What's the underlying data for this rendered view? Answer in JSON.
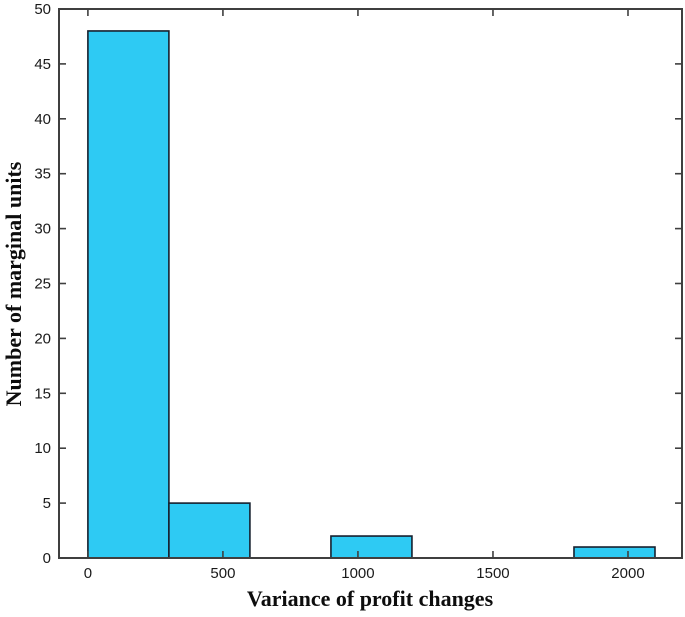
{
  "chart_data": {
    "type": "bar",
    "title": "",
    "xlabel": "Variance of profit changes",
    "ylabel": "Number of marginal units",
    "bars": [
      {
        "x0": 0,
        "x1": 300,
        "value": 48
      },
      {
        "x0": 300,
        "x1": 600,
        "value": 5
      },
      {
        "x0": 900,
        "x1": 1200,
        "value": 2
      },
      {
        "x0": 1800,
        "x1": 2100,
        "value": 1
      }
    ],
    "xticks": [
      0,
      500,
      1000,
      1500,
      2000
    ],
    "yticks": [
      0,
      5,
      10,
      15,
      20,
      25,
      30,
      35,
      40,
      45,
      50
    ],
    "xlim": [
      -107,
      2200
    ],
    "ylim": [
      0,
      50
    ],
    "grid": false,
    "legend": null,
    "bar_fill": "#2ecaf3",
    "bar_edge": "#16202e",
    "axis_color": "#3f3f3f",
    "tick_label_color": "#1a1a1a",
    "label_color": "#0d0d0d",
    "background": "#ffffff"
  }
}
